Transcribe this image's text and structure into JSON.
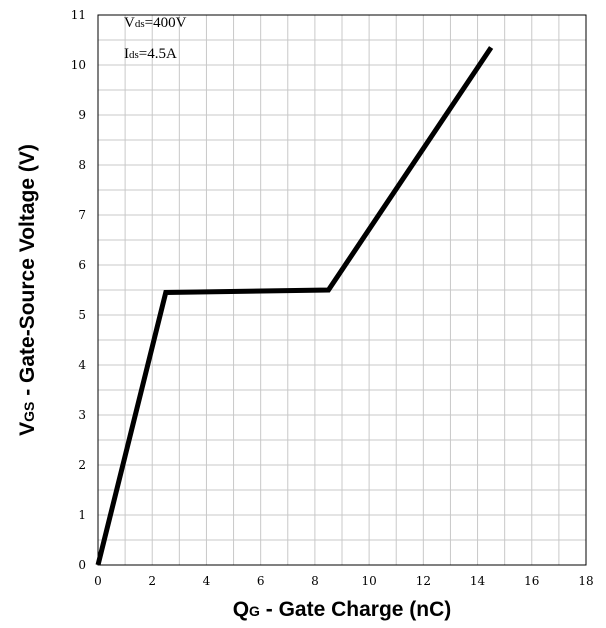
{
  "chart_data": {
    "type": "line",
    "xlabel_main": "Q",
    "xlabel_sub": "G",
    "xlabel_rest": " - Gate Charge (nC)",
    "ylabel_main": "V",
    "ylabel_sub": "GS",
    "ylabel_rest": " - Gate-Source Voltage (V)",
    "xlim": [
      0,
      18
    ],
    "ylim": [
      0,
      11
    ],
    "xticks": [
      0,
      2,
      4,
      6,
      8,
      10,
      12,
      14,
      16,
      18
    ],
    "yticks": [
      0,
      1,
      2,
      3,
      4,
      5,
      6,
      7,
      8,
      9,
      10,
      11
    ],
    "x_minor_step": 1,
    "y_minor_step": 0.5,
    "grid": true,
    "annotations": [
      {
        "main": "V",
        "sub": "ds",
        "rest": "=400V"
      },
      {
        "main": "I",
        "sub": "ds",
        "rest": "=4.5A"
      }
    ],
    "series": [
      {
        "x": [
          0,
          2.5,
          8.5,
          14.5
        ],
        "y": [
          0,
          5.45,
          5.5,
          10.35
        ],
        "color": "#000000"
      }
    ]
  }
}
